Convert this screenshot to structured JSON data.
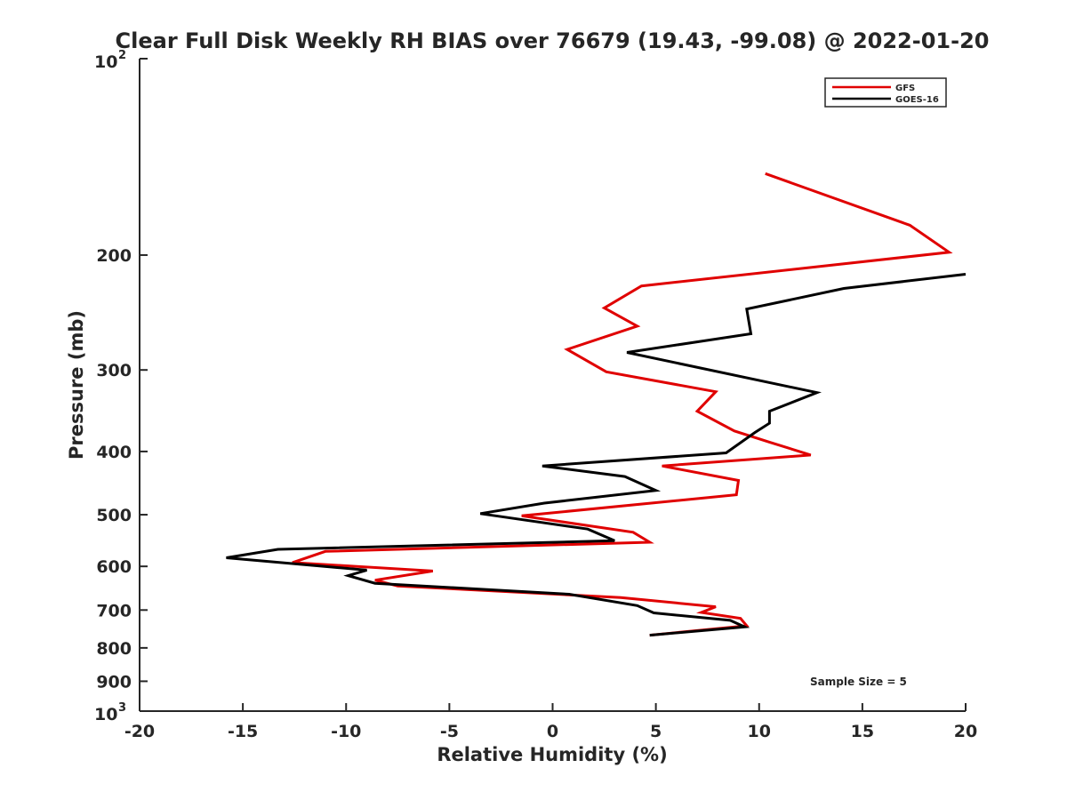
{
  "chart_data": {
    "type": "line",
    "title": "Clear Full Disk Weekly RH BIAS over 76679 (19.43, -99.08) @ 2022-01-20",
    "xlabel": "Relative Humidity (%)",
    "ylabel": "Pressure (mb)",
    "xlim": [
      -20,
      20
    ],
    "ylim": [
      100,
      1000
    ],
    "yscale": "log",
    "y_reversed": true,
    "x_ticks": [
      -20,
      -15,
      -10,
      -5,
      0,
      5,
      10,
      15,
      20
    ],
    "x_tick_labels": [
      "-20",
      "-15",
      "-10",
      "-5",
      "0",
      "5",
      "10",
      "15",
      "20"
    ],
    "y_ticks": [
      200,
      300,
      400,
      500,
      600,
      700,
      800,
      900
    ],
    "y_tick_labels": [
      "200",
      "300",
      "400",
      "500",
      "600",
      "700",
      "800",
      "900"
    ],
    "y_top_label": {
      "base": "10",
      "exp": "2"
    },
    "y_bottom_label": {
      "base": "10",
      "exp": "3"
    },
    "grid": false,
    "legend_position": "top-right",
    "annotation": "Sample Size = 5",
    "series": [
      {
        "name": "GFS",
        "color": "#e00000",
        "points": [
          [
            10.3,
            150
          ],
          [
            17.3,
            180
          ],
          [
            19.2,
            198
          ],
          [
            4.3,
            223
          ],
          [
            2.5,
            241
          ],
          [
            4.1,
            257
          ],
          [
            0.7,
            279
          ],
          [
            2.6,
            302
          ],
          [
            7.9,
            324
          ],
          [
            7.0,
            347
          ],
          [
            8.8,
            372
          ],
          [
            10.5,
            387
          ],
          [
            12.5,
            405
          ],
          [
            5.3,
            421
          ],
          [
            9.0,
            443
          ],
          [
            8.9,
            466
          ],
          [
            -1.5,
            502
          ],
          [
            3.9,
            532
          ],
          [
            4.7,
            551
          ],
          [
            -11.0,
            569
          ],
          [
            -12.6,
            592
          ],
          [
            -5.8,
            610
          ],
          [
            -8.6,
            630
          ],
          [
            -7.5,
            643
          ],
          [
            3.3,
            670
          ],
          [
            7.9,
            692
          ],
          [
            7.2,
            706
          ],
          [
            9.1,
            721
          ],
          [
            9.4,
            740
          ],
          [
            4.7,
            765
          ]
        ]
      },
      {
        "name": "GOES-16",
        "color": "#000000",
        "points": [
          [
            20.0,
            214
          ],
          [
            14.1,
            225
          ],
          [
            9.4,
            242
          ],
          [
            9.6,
            264
          ],
          [
            3.6,
            282
          ],
          [
            12.8,
            325
          ],
          [
            10.5,
            347
          ],
          [
            10.5,
            362
          ],
          [
            9.8,
            374
          ],
          [
            8.4,
            402
          ],
          [
            -0.5,
            421
          ],
          [
            3.5,
            437
          ],
          [
            5.0,
            459
          ],
          [
            -0.4,
            480
          ],
          [
            -3.5,
            498
          ],
          [
            1.7,
            526
          ],
          [
            3.0,
            548
          ],
          [
            -13.3,
            565
          ],
          [
            -15.8,
            582
          ],
          [
            -9.0,
            608
          ],
          [
            -9.9,
            620
          ],
          [
            -8.6,
            637
          ],
          [
            0.8,
            662
          ],
          [
            4.1,
            689
          ],
          [
            4.9,
            707
          ],
          [
            8.6,
            726
          ],
          [
            9.3,
            743
          ],
          [
            4.7,
            765
          ]
        ]
      }
    ]
  }
}
